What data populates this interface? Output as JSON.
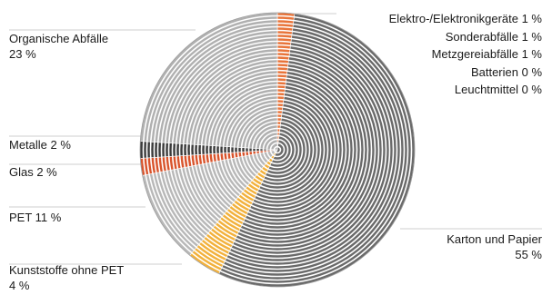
{
  "chart_data": {
    "type": "pie",
    "title": "",
    "slices": [
      {
        "label": "Elektro-/Elektronikgeräte",
        "value_text": "1 %",
        "value": 1,
        "color": "#e8743a",
        "display_share": 0.02
      },
      {
        "label": "Sonderabfälle",
        "value_text": "1 %",
        "value": 1,
        "color": "#555555",
        "display_share": 0
      },
      {
        "label": "Metzgereiabfälle",
        "value_text": "1 %",
        "value": 1,
        "color": "#555555",
        "display_share": 0
      },
      {
        "label": "Batterien",
        "value_text": "0 %",
        "value": 0,
        "color": "#555555",
        "display_share": 0
      },
      {
        "label": "Leuchtmittel",
        "value_text": "0 %",
        "value": 0,
        "color": "#555555",
        "display_share": 0
      },
      {
        "label": "Karton und Papier",
        "value_text": "55 %",
        "value": 55,
        "color": "#6a6a6a",
        "display_share": 0.55
      },
      {
        "label": "Kunststoffe ohne PET",
        "value_text": "4 %",
        "value": 4,
        "color": "#f2b13c",
        "display_share": 0.04
      },
      {
        "label": "PET",
        "value_text": "11 %",
        "value": 11,
        "color": "#b8b8b8",
        "display_share": 0.11
      },
      {
        "label": "Glas",
        "value_text": "2 %",
        "value": 2,
        "color": "#d9542c",
        "display_share": 0.02
      },
      {
        "label": "Metalle",
        "value_text": "2 %",
        "value": 2,
        "color": "#3a3a3a",
        "display_share": 0.02
      },
      {
        "label": "Organische Abfälle",
        "value_text": "23 %",
        "value": 23,
        "color": "#b0b0b0",
        "display_share": 0.24
      }
    ]
  }
}
